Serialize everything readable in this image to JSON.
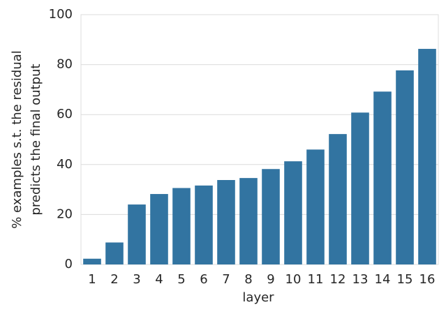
{
  "chart_data": {
    "type": "bar",
    "xlabel": "layer",
    "ylabel": [
      "% examples s.t. the residual",
      "predicts the final output"
    ],
    "categories": [
      "1",
      "2",
      "3",
      "4",
      "5",
      "6",
      "7",
      "8",
      "9",
      "10",
      "11",
      "12",
      "13",
      "14",
      "15",
      "16"
    ],
    "values": [
      2.3,
      8.8,
      24,
      28.2,
      30.6,
      31.6,
      33.8,
      34.6,
      38.2,
      41.3,
      46,
      52.2,
      60.8,
      69.2,
      77.7,
      86.3
    ],
    "color": "#3274a1",
    "ylim": [
      0,
      100
    ],
    "yticks": [
      0,
      20,
      40,
      60,
      80,
      100
    ],
    "grid": true
  }
}
